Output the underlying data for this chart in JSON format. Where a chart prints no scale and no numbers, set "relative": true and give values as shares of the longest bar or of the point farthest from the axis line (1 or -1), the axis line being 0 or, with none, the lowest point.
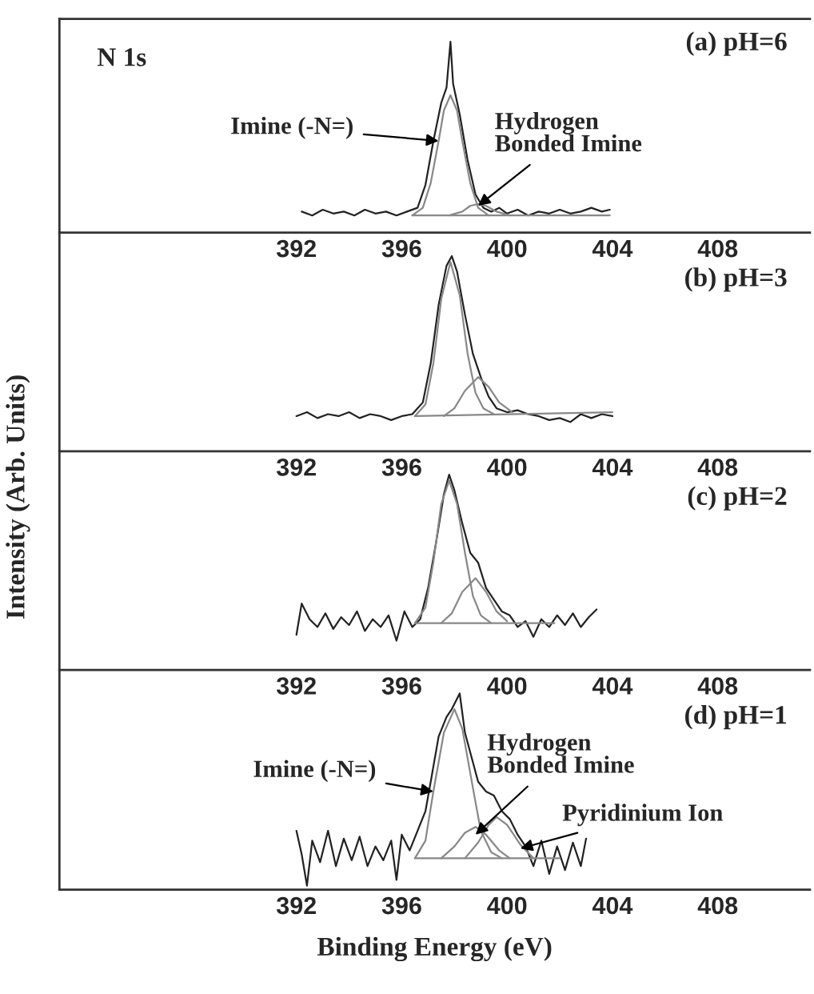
{
  "chart_data": [
    {
      "type": "line",
      "title": "(a) pH=6",
      "ylabel": "Intensity (Arb. Units)",
      "relative": true,
      "xlim": [
        383,
        411.5
      ],
      "xticks": [
        392,
        396,
        400,
        404,
        408
      ],
      "tick_labels": "x",
      "grid": false,
      "legend": false,
      "marker": "none",
      "line_style": "solid",
      "annotations": [
        "N 1s",
        {
          "text": "Imine (-N=)",
          "x": 397.4,
          "y": 0.48
        },
        {
          "text": "Hydrogen\nBonded Imine",
          "x": 398.9,
          "y": 0.14
        }
      ],
      "series": [
        {
          "color": "#222222",
          "x": [
            392.2,
            392.6,
            393.0,
            393.4,
            393.8,
            394.2,
            394.6,
            395.0,
            395.4,
            395.8,
            396.2,
            396.6,
            396.9,
            397.2,
            397.5,
            397.7,
            397.85,
            397.95,
            398.2,
            398.5,
            398.8,
            399.1,
            399.4,
            399.7,
            400.0,
            400.4,
            400.8,
            401.2,
            401.6,
            402.0,
            402.4,
            402.8,
            403.2,
            403.6,
            403.9
          ],
          "values": [
            0.11,
            0.09,
            0.12,
            0.1,
            0.11,
            0.09,
            0.12,
            0.1,
            0.11,
            0.09,
            0.11,
            0.13,
            0.25,
            0.48,
            0.68,
            0.76,
            1.0,
            0.78,
            0.62,
            0.38,
            0.2,
            0.13,
            0.11,
            0.13,
            0.1,
            0.12,
            0.09,
            0.11,
            0.1,
            0.12,
            0.1,
            0.11,
            0.13,
            0.11,
            0.12
          ]
        },
        {
          "color": "#888888",
          "x": [
            396.4,
            396.8,
            397.1,
            397.4,
            397.6,
            397.85,
            398.1,
            398.3,
            398.6,
            398.9,
            399.3
          ],
          "values": [
            0.09,
            0.13,
            0.26,
            0.48,
            0.64,
            0.72,
            0.64,
            0.48,
            0.26,
            0.13,
            0.09
          ]
        },
        {
          "color": "#888888",
          "x": [
            397.8,
            398.3,
            398.6,
            398.9,
            399.2,
            399.6,
            400.1
          ],
          "values": [
            0.09,
            0.11,
            0.14,
            0.15,
            0.14,
            0.11,
            0.09
          ]
        },
        {
          "color": "#888888",
          "x": [
            396.4,
            403.9
          ],
          "values": [
            0.09,
            0.09
          ]
        }
      ]
    },
    {
      "type": "line",
      "title": "(b) pH=3",
      "relative": true,
      "xlim": [
        383,
        411.5
      ],
      "xticks": [
        392,
        396,
        400,
        404,
        408
      ],
      "tick_labels": "x",
      "grid": false,
      "legend": false,
      "marker": "none",
      "line_style": "solid",
      "series": [
        {
          "color": "#222222",
          "x": [
            392.0,
            392.4,
            392.8,
            393.2,
            393.6,
            394.0,
            394.4,
            394.8,
            395.2,
            395.6,
            396.0,
            396.4,
            396.8,
            397.1,
            397.4,
            397.7,
            397.9,
            398.1,
            398.4,
            398.7,
            399.0,
            399.3,
            399.6,
            400.0,
            400.4,
            400.8,
            401.2,
            401.6,
            402.0,
            402.4,
            402.8,
            403.2,
            403.6,
            404.0
          ],
          "values": [
            0.18,
            0.2,
            0.17,
            0.19,
            0.18,
            0.2,
            0.17,
            0.19,
            0.18,
            0.16,
            0.18,
            0.19,
            0.25,
            0.45,
            0.75,
            0.95,
            1.0,
            0.92,
            0.7,
            0.5,
            0.38,
            0.28,
            0.22,
            0.2,
            0.21,
            0.19,
            0.18,
            0.16,
            0.17,
            0.15,
            0.19,
            0.17,
            0.19,
            0.18
          ]
        },
        {
          "color": "#888888",
          "x": [
            396.5,
            396.9,
            397.2,
            397.5,
            397.85,
            398.2,
            398.5,
            398.8,
            399.1,
            399.5
          ],
          "values": [
            0.18,
            0.24,
            0.45,
            0.78,
            0.97,
            0.8,
            0.5,
            0.3,
            0.22,
            0.19
          ]
        },
        {
          "color": "#888888",
          "x": [
            397.6,
            398.0,
            398.4,
            398.9,
            399.3,
            399.7,
            400.2
          ],
          "values": [
            0.18,
            0.22,
            0.31,
            0.38,
            0.33,
            0.25,
            0.2
          ]
        },
        {
          "color": "#888888",
          "x": [
            396.5,
            404.0
          ],
          "values": [
            0.18,
            0.2
          ]
        }
      ]
    },
    {
      "type": "line",
      "title": "(c) pH=2",
      "relative": true,
      "xlim": [
        383,
        411.5
      ],
      "xticks": [
        392,
        396,
        400,
        404,
        408
      ],
      "tick_labels": "x",
      "grid": false,
      "legend": false,
      "marker": "none",
      "line_style": "solid",
      "series": [
        {
          "color": "#222222",
          "x": [
            392.0,
            392.2,
            392.5,
            392.8,
            393.1,
            393.4,
            393.7,
            394.0,
            394.3,
            394.6,
            394.9,
            395.2,
            395.5,
            395.8,
            396.1,
            396.4,
            396.7,
            397.0,
            397.3,
            397.6,
            397.8,
            398.0,
            398.3,
            398.6,
            398.9,
            399.2,
            399.5,
            399.8,
            400.1,
            400.4,
            400.7,
            401.0,
            401.3,
            401.6,
            401.9,
            402.2,
            402.5,
            402.8,
            403.1,
            403.4
          ],
          "values": [
            0.18,
            0.34,
            0.26,
            0.22,
            0.29,
            0.21,
            0.27,
            0.23,
            0.3,
            0.2,
            0.26,
            0.22,
            0.28,
            0.15,
            0.3,
            0.22,
            0.26,
            0.42,
            0.65,
            0.9,
            1.0,
            0.92,
            0.75,
            0.6,
            0.55,
            0.42,
            0.36,
            0.3,
            0.28,
            0.22,
            0.25,
            0.17,
            0.26,
            0.22,
            0.28,
            0.23,
            0.29,
            0.22,
            0.27,
            0.31
          ]
        },
        {
          "color": "#888888",
          "x": [
            396.5,
            396.9,
            397.2,
            397.5,
            397.8,
            398.1,
            398.4,
            398.7,
            399.0,
            399.4
          ],
          "values": [
            0.24,
            0.32,
            0.55,
            0.85,
            0.97,
            0.85,
            0.6,
            0.38,
            0.28,
            0.24
          ]
        },
        {
          "color": "#888888",
          "x": [
            397.5,
            397.9,
            398.3,
            398.8,
            399.2,
            399.6,
            400.0
          ],
          "values": [
            0.24,
            0.29,
            0.4,
            0.47,
            0.4,
            0.3,
            0.25
          ]
        },
        {
          "color": "#888888",
          "x": [
            396.5,
            401.8
          ],
          "values": [
            0.24,
            0.24
          ]
        }
      ]
    },
    {
      "type": "line",
      "title": "(d) pH=1",
      "xlabel": "Binding Energy (eV)",
      "relative": true,
      "xlim": [
        383,
        411.5
      ],
      "xticks": [
        392,
        396,
        400,
        404,
        408
      ],
      "tick_labels": "x",
      "grid": false,
      "legend": false,
      "marker": "none",
      "line_style": "solid",
      "annotations": [
        {
          "text": "Imine (-N=)",
          "x": 397.2,
          "y": 0.5
        },
        {
          "text": "Hydrogen\nBonded Imine",
          "x": 398.8,
          "y": 0.28
        },
        {
          "text": "Pyridinium Ion",
          "x": 400.5,
          "y": 0.21
        }
      ],
      "series": [
        {
          "color": "#222222",
          "x": [
            392.0,
            392.2,
            392.4,
            392.6,
            392.9,
            393.2,
            393.5,
            393.8,
            394.1,
            394.4,
            394.7,
            395.0,
            395.3,
            395.6,
            395.8,
            396.0,
            396.3,
            396.6,
            396.9,
            397.1,
            397.4,
            397.7,
            397.9,
            398.2,
            398.4,
            398.6,
            398.9,
            399.2,
            399.5,
            399.8,
            400.1,
            400.4,
            400.7,
            401.0,
            401.3,
            401.6,
            401.9,
            402.2,
            402.5,
            402.8,
            403.0
          ],
          "values": [
            0.3,
            0.18,
            0.02,
            0.25,
            0.14,
            0.3,
            0.12,
            0.26,
            0.15,
            0.27,
            0.12,
            0.22,
            0.15,
            0.25,
            0.05,
            0.28,
            0.2,
            0.3,
            0.4,
            0.55,
            0.78,
            0.88,
            0.92,
            1.0,
            0.8,
            0.7,
            0.55,
            0.5,
            0.48,
            0.4,
            0.36,
            0.28,
            0.22,
            0.12,
            0.25,
            0.08,
            0.22,
            0.1,
            0.24,
            0.12,
            0.26
          ]
        },
        {
          "color": "#888888",
          "x": [
            396.5,
            396.9,
            397.2,
            397.6,
            398.0,
            398.3,
            398.7,
            399.0,
            399.4,
            399.8
          ],
          "values": [
            0.16,
            0.25,
            0.5,
            0.8,
            0.92,
            0.82,
            0.52,
            0.3,
            0.19,
            0.16
          ]
        },
        {
          "color": "#888888",
          "x": [
            397.5,
            398.0,
            398.4,
            398.8,
            399.2,
            399.7,
            400.1
          ],
          "values": [
            0.16,
            0.22,
            0.29,
            0.32,
            0.28,
            0.2,
            0.16
          ]
        },
        {
          "color": "#888888",
          "x": [
            398.4,
            398.9,
            399.3,
            399.6,
            400.0,
            400.5,
            401.0
          ],
          "values": [
            0.16,
            0.24,
            0.33,
            0.37,
            0.33,
            0.23,
            0.16
          ]
        },
        {
          "color": "#888888",
          "x": [
            396.5,
            402.0
          ],
          "values": [
            0.16,
            0.16
          ]
        }
      ]
    }
  ]
}
